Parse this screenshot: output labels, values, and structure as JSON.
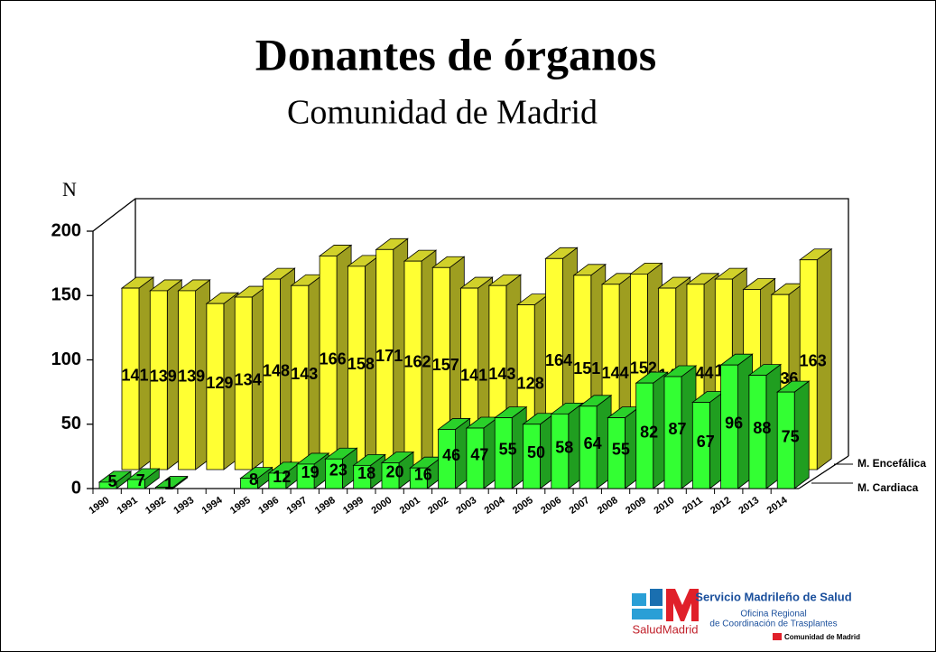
{
  "chart_data": {
    "type": "bar3d",
    "title": "Donantes de órganos",
    "subtitle": "Comunidad de Madrid",
    "y_label": "N",
    "categories": [
      "1990",
      "1991",
      "1992",
      "1993",
      "1994",
      "1995",
      "1996",
      "1997",
      "1998",
      "1999",
      "2000",
      "2001",
      "2002",
      "2003",
      "2004",
      "2005",
      "2006",
      "2007",
      "2008",
      "2009",
      "2010",
      "2011",
      "2012",
      "2013",
      "2014"
    ],
    "ylim": [
      0,
      200
    ],
    "yticks": [
      0,
      50,
      100,
      150,
      200
    ],
    "series": [
      {
        "name": "M. Encefálica",
        "color": "#ffff33",
        "values": [
          141,
          139,
          139,
          129,
          134,
          148,
          143,
          166,
          158,
          171,
          162,
          157,
          141,
          143,
          128,
          164,
          151,
          144,
          152,
          141,
          144,
          148,
          140,
          136,
          163
        ]
      },
      {
        "name": "M. Cardiaca",
        "color": "#33ff33",
        "values": [
          5,
          7,
          1,
          null,
          null,
          8,
          12,
          19,
          23,
          18,
          20,
          16,
          46,
          47,
          55,
          50,
          58,
          64,
          55,
          82,
          87,
          67,
          96,
          88,
          75
        ]
      }
    ]
  },
  "logo": {
    "brand": "SaludMadrid",
    "service": "Servicio Madrileño de Salud",
    "office1": "Oficina Regional",
    "office2": "de Coordinación de Trasplantes",
    "community": "Comunidad de Madrid"
  }
}
